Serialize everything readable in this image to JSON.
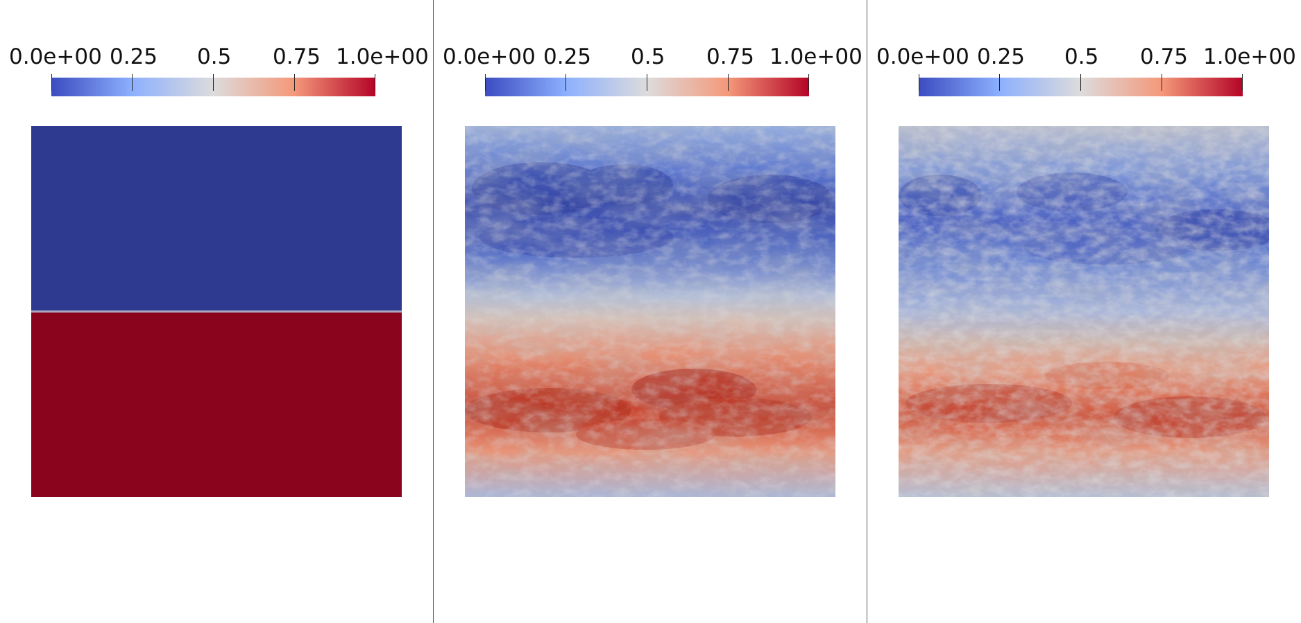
{
  "panels": [
    {
      "colorbar": {
        "labels": [
          "0.0e+00",
          "0.25",
          "0.5",
          "0.75",
          "1.0e+00"
        ]
      },
      "colormap": "coolwarm",
      "field": "two-phase step: blue upper half, red lower half, thin grey interface"
    },
    {
      "colorbar": {
        "labels": [
          "0.0e+00",
          "0.25",
          "0.5",
          "0.75",
          "1.0e+00"
        ]
      },
      "colormap": "coolwarm",
      "field": "noisy mixed field: blue band upper, red band lower"
    },
    {
      "colorbar": {
        "labels": [
          "0.0e+00",
          "0.25",
          "0.5",
          "0.75",
          "1.0e+00"
        ]
      },
      "colormap": "coolwarm",
      "field": "noisy mixed field: more diffuse blue upper, red band lower"
    }
  ],
  "colors": {
    "cold": "#3b4cc0",
    "neutral": "#dddddd",
    "hot": "#b40426",
    "step_blue": "#2e3a8f",
    "step_red": "#8b041e",
    "divider": "#555555"
  }
}
